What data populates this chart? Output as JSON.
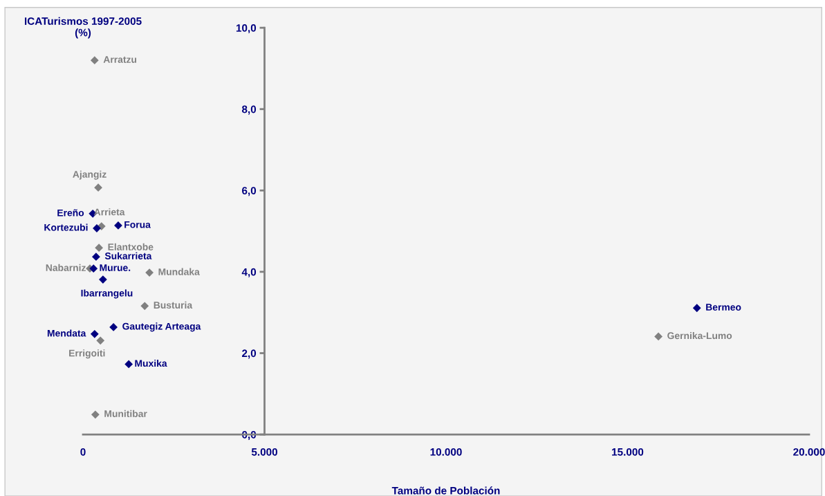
{
  "chart_data": {
    "type": "scatter",
    "xlabel": "Tamaño de Población",
    "ylabel": "ICATurismos 1997-2005\n(%)",
    "marker": "diamond",
    "grid": false,
    "legend": false,
    "xlim": [
      0,
      20000
    ],
    "ylim": [
      0,
      10
    ],
    "xticks": [
      0,
      {
        "value": 5000,
        "label": "5.000"
      },
      {
        "value": 10000,
        "label": "10.000"
      },
      {
        "value": 15000,
        "label": "15.000"
      },
      {
        "value": 20000,
        "label": "20.000"
      }
    ],
    "yticks": [
      {
        "value": 0,
        "label": "0,0"
      },
      {
        "value": 2,
        "label": "2,0"
      },
      {
        "value": 4,
        "label": "4,0"
      },
      {
        "value": 6,
        "label": "6,0"
      },
      {
        "value": 8,
        "label": "8,0"
      },
      {
        "value": 10,
        "label": "10,0"
      }
    ],
    "series": [
      {
        "color": "#808080",
        "x": [
          320,
          420,
          510,
          440,
          190,
          1830,
          1700,
          480,
          340,
          15850
        ],
        "values": [
          9.2,
          6.07,
          5.12,
          4.59,
          4.08,
          3.98,
          3.16,
          2.31,
          0.49,
          2.41
        ]
      },
      {
        "color": "#000080",
        "x": [
          270,
          380,
          970,
          360,
          290,
          550,
          840,
          320,
          1260,
          16910
        ],
        "values": [
          5.43,
          5.07,
          5.14,
          4.37,
          4.08,
          3.81,
          2.64,
          2.47,
          1.73,
          3.11
        ]
      }
    ],
    "annotations": [
      {
        "text": "Arratzu",
        "x": 320,
        "y": 9.2
      },
      {
        "text": "Ajangiz",
        "x": 420,
        "y": 6.07
      },
      {
        "text": "Arrieta",
        "x": 510,
        "y": 5.12
      },
      {
        "text": "Elantxobe",
        "x": 440,
        "y": 4.59
      },
      {
        "text": "Nabarniz",
        "x": 190,
        "y": 4.08
      },
      {
        "text": "Mundaka",
        "x": 1830,
        "y": 3.98
      },
      {
        "text": "Busturia",
        "x": 1700,
        "y": 3.16
      },
      {
        "text": "Errigoiti",
        "x": 480,
        "y": 2.31
      },
      {
        "text": "Munitibar",
        "x": 340,
        "y": 0.49
      },
      {
        "text": "Gernika-Lumo",
        "x": 15850,
        "y": 2.41
      },
      {
        "text": "Ereño",
        "x": 270,
        "y": 5.43
      },
      {
        "text": "Kortezubi",
        "x": 380,
        "y": 5.07
      },
      {
        "text": "Forua",
        "x": 970,
        "y": 5.14
      },
      {
        "text": "Sukarrieta",
        "x": 360,
        "y": 4.37
      },
      {
        "text": "Murue.",
        "x": 290,
        "y": 4.08
      },
      {
        "text": "Ibarrangelu",
        "x": 550,
        "y": 3.81
      },
      {
        "text": "Gautegiz Arteaga",
        "x": 840,
        "y": 2.64
      },
      {
        "text": "Mendata",
        "x": 320,
        "y": 2.47
      },
      {
        "text": "Muxika",
        "x": 1260,
        "y": 1.73
      },
      {
        "text": "Bermeo",
        "x": 16910,
        "y": 3.11
      }
    ]
  }
}
